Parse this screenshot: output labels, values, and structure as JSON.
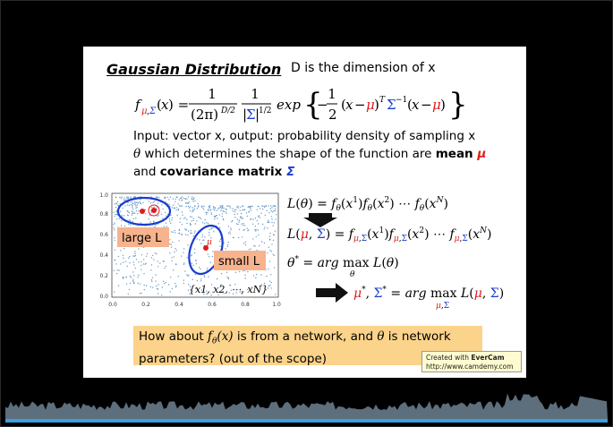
{
  "slide": {
    "title": "Gaussian Distribution",
    "dimension_note": "D is the dimension of x",
    "line1": "Input: vector x, output: probability density of sampling x",
    "line2_theta": "θ",
    "line2_text": " which determines the shape of the function are ",
    "line2_mean": "mean ",
    "mu_symbol": "μ",
    "line3_and": "and ",
    "line3_cov": "covariance matrix ",
    "sigma_symbol": "Σ",
    "callout_line1_a": "How about ",
    "callout_line1_b": " is from a network, and ",
    "callout_line1_theta": "θ",
    "callout_line1_c": " is network",
    "callout_line2": "parameters? (out of the scope)"
  },
  "scatter": {
    "label_large": "large L",
    "label_small": "small L",
    "label_mu": "μ",
    "set_label": "{x1, x2, ⋯, xN}",
    "x_ticks": [
      "0.0",
      "0.2",
      "0.4",
      "0.6",
      "0.8",
      "1.0"
    ],
    "y_ticks": [
      "0.0",
      "0.2",
      "0.4",
      "0.6",
      "0.8",
      "1.0"
    ]
  },
  "watermark": {
    "line1_prefix": "Created with ",
    "brand": "EverCam",
    "line2": "http://www.camdemy.com"
  },
  "colors": {
    "mu": "#e01b1b",
    "sigma": "#1a3ccf",
    "callout_bg": "#fbd38a",
    "label_bg": "#f6b38e",
    "scatter_points": "#3a78b5",
    "waveform": "#5d6e7c"
  }
}
